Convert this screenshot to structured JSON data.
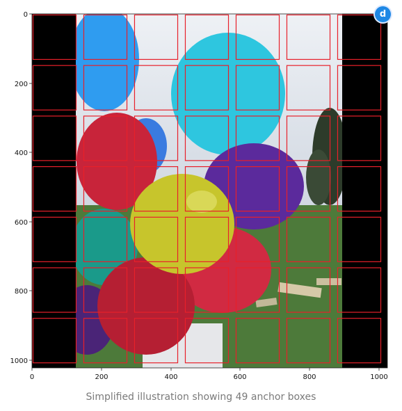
{
  "figure": {
    "x_ticks": [
      "0",
      "200",
      "400",
      "600",
      "800",
      "1000"
    ],
    "y_ticks": [
      "0",
      "200",
      "400",
      "600",
      "800",
      "1000"
    ],
    "anchor_grid": {
      "rows": 7,
      "cols": 7,
      "count": 49
    },
    "image_extent": {
      "x": [
        0,
        1024
      ],
      "y": [
        1024,
        0
      ]
    },
    "anchor_color": "#e8202a",
    "colors": {
      "padding": "#000000",
      "sky": "#d8dde6",
      "grass": "#4d7a3a",
      "balloon_blue": "#2f9cf0",
      "balloon_cyan": "#2ec6df",
      "balloon_red": "#c8243a",
      "balloon_purple": "#5b2a9c",
      "balloon_yellow": "#c7c52c",
      "balloon_green": "#1a9a8a"
    }
  },
  "brand": {
    "icon": "d-logo-icon",
    "glyph": "d"
  },
  "caption": "Simplified illustration showing 49 anchor boxes"
}
